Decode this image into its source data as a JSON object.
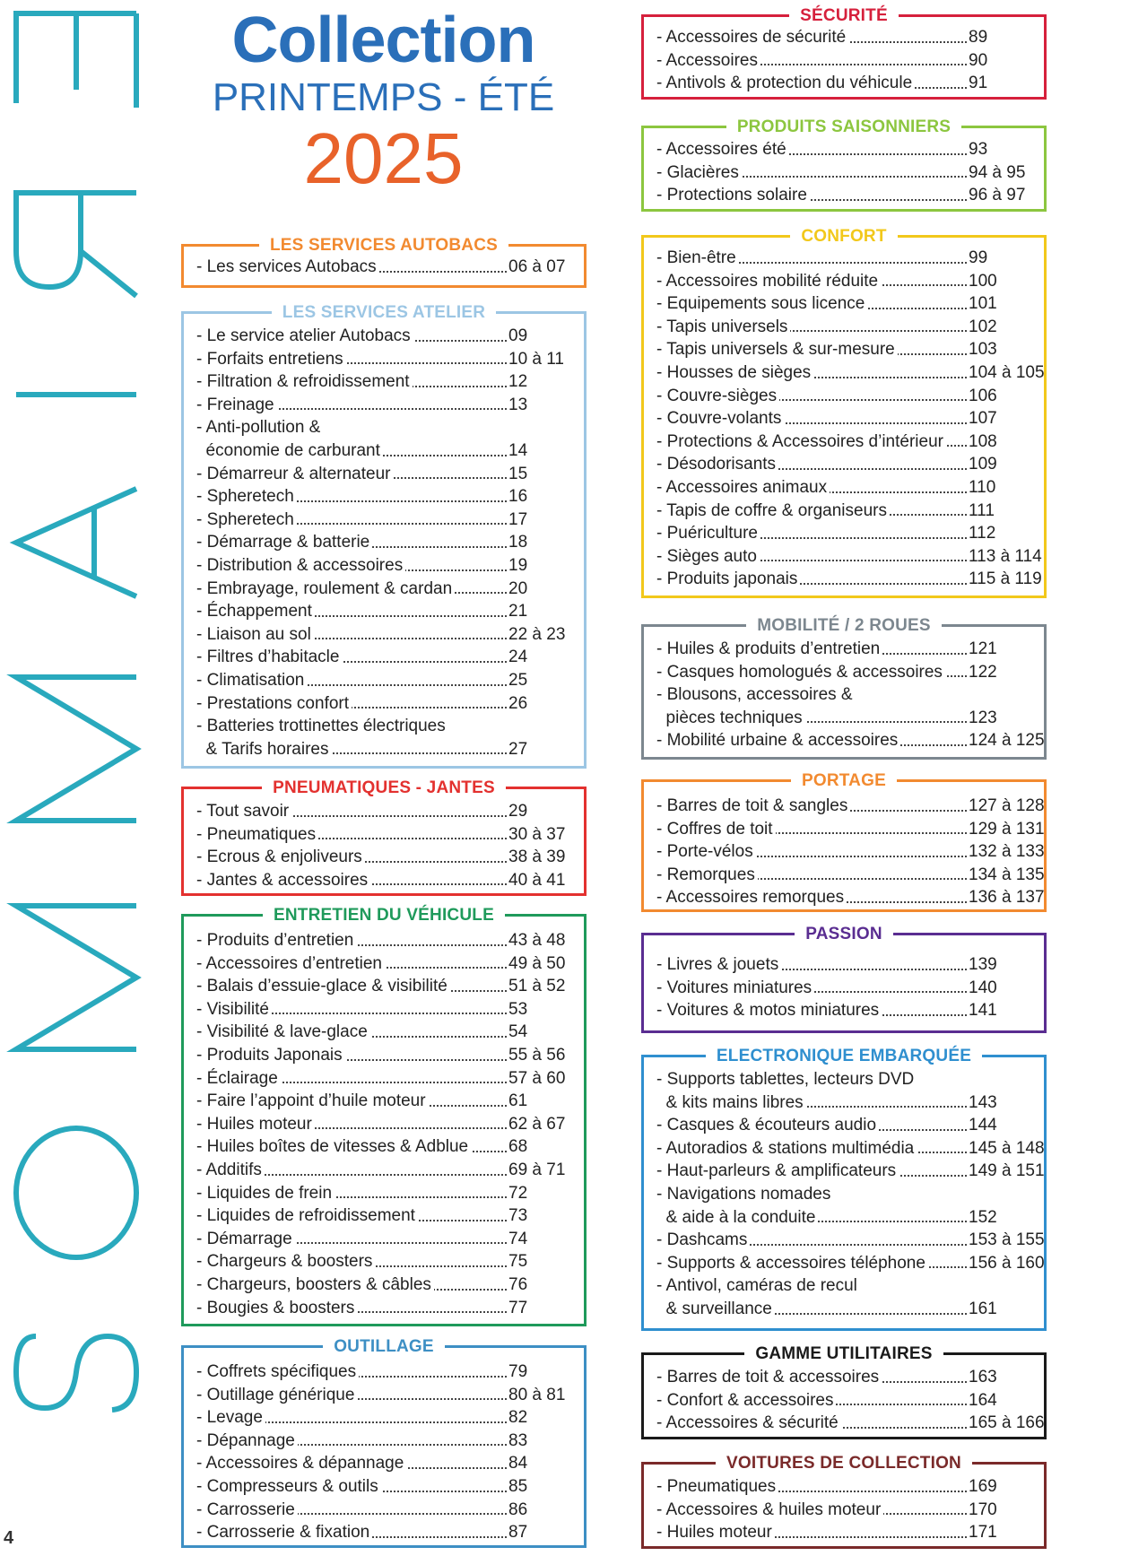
{
  "page_number": "4",
  "vertical_title": "SOMMAIRE",
  "header": {
    "line1": "Collection",
    "line2": "PRINTEMPS - ÉTÉ",
    "line3": "2025"
  },
  "sections": [
    {
      "id": "autobacs",
      "title": "LES SERVICES AUTOBACS",
      "color": "#f28a30",
      "items": [
        {
          "label": "- Les services Autobacs",
          "pages": "06 à 07"
        }
      ]
    },
    {
      "id": "atelier",
      "title": "LES SERVICES ATELIER",
      "color": "#9cc6e4",
      "items": [
        {
          "label": "- Le service atelier Autobacs",
          "pages": "09"
        },
        {
          "label": "- Forfaits entretiens",
          "pages": "10 à 11"
        },
        {
          "label": "- Filtration & refroidissement",
          "pages": "12"
        },
        {
          "label": "- Freinage",
          "pages": "13"
        },
        {
          "label": "- Anti-pollution &",
          "pages": ""
        },
        {
          "label": "  économie de carburant",
          "pages": "14"
        },
        {
          "label": "- Démarreur & alternateur",
          "pages": "15"
        },
        {
          "label": "- Spheretech",
          "pages": "16"
        },
        {
          "label": "- Spheretech",
          "pages": "17"
        },
        {
          "label": "- Démarrage & batterie",
          "pages": "18"
        },
        {
          "label": "- Distribution & accessoires",
          "pages": "19"
        },
        {
          "label": "- Embrayage, roulement & cardan",
          "pages": "20"
        },
        {
          "label": "- Échappement",
          "pages": "21"
        },
        {
          "label": "- Liaison au sol",
          "pages": "22 à 23"
        },
        {
          "label": "- Filtres d’habitacle",
          "pages": "24"
        },
        {
          "label": "- Climatisation",
          "pages": "25"
        },
        {
          "label": "- Prestations confort",
          "pages": "26"
        },
        {
          "label": "- Batteries trottinettes électriques",
          "pages": ""
        },
        {
          "label": "  & Tarifs horaires",
          "pages": "27"
        }
      ]
    },
    {
      "id": "pneus",
      "title": "PNEUMATIQUES - JANTES",
      "color": "#e3312f",
      "items": [
        {
          "label": "- Tout savoir",
          "pages": "29"
        },
        {
          "label": "- Pneumatiques",
          "pages": "30 à 37"
        },
        {
          "label": "- Ecrous & enjoliveurs",
          "pages": "38 à 39"
        },
        {
          "label": "- Jantes & accessoires",
          "pages": "40 à 41"
        }
      ]
    },
    {
      "id": "entretien",
      "title": "ENTRETIEN DU VÉHICULE",
      "color": "#1f9a5b",
      "items": [
        {
          "label": "- Produits d’entretien",
          "pages": "43 à 48"
        },
        {
          "label": "- Accessoires d’entretien",
          "pages": "49 à 50"
        },
        {
          "label": "- Balais d’essuie-glace & visibilité",
          "pages": "51 à 52"
        },
        {
          "label": "- Visibilité",
          "pages": "53"
        },
        {
          "label": "- Visibilité & lave-glace",
          "pages": "54"
        },
        {
          "label": "- Produits Japonais",
          "pages": "55 à 56"
        },
        {
          "label": "- Éclairage",
          "pages": "57 à 60"
        },
        {
          "label": "- Faire l’appoint d’huile moteur",
          "pages": "61"
        },
        {
          "label": "- Huiles moteur",
          "pages": "62 à 67"
        },
        {
          "label": "- Huiles boîtes de vitesses & Adblue",
          "pages": "68"
        },
        {
          "label": "- Additifs",
          "pages": "69 à 71"
        },
        {
          "label": "- Liquides de frein",
          "pages": "72"
        },
        {
          "label": "- Liquides de refroidissement",
          "pages": "73"
        },
        {
          "label": "- Démarrage",
          "pages": "74"
        },
        {
          "label": "- Chargeurs & boosters",
          "pages": "75"
        },
        {
          "label": "- Chargeurs, boosters & câbles",
          "pages": "76"
        },
        {
          "label": "- Bougies & boosters",
          "pages": "77"
        }
      ]
    },
    {
      "id": "outillage",
      "title": "OUTILLAGE",
      "color": "#3d8fc4",
      "items": [
        {
          "label": "- Coffrets spécifiques",
          "pages": "79"
        },
        {
          "label": "- Outillage générique",
          "pages": "80 à 81"
        },
        {
          "label": "- Levage",
          "pages": "82"
        },
        {
          "label": "- Dépannage",
          "pages": "83"
        },
        {
          "label": "- Accessoires & dépannage",
          "pages": "84"
        },
        {
          "label": "- Compresseurs & outils",
          "pages": "85"
        },
        {
          "label": "- Carrosserie",
          "pages": "86"
        },
        {
          "label": "- Carrosserie & fixation",
          "pages": "87"
        }
      ]
    },
    {
      "id": "securite",
      "title": "SÉCURITÉ",
      "color": "#d6203c",
      "items": [
        {
          "label": "- Accessoires de sécurité",
          "pages": "89"
        },
        {
          "label": "- Accessoires",
          "pages": "90"
        },
        {
          "label": "- Antivols & protection du véhicule",
          "pages": "91"
        }
      ]
    },
    {
      "id": "saisonniers",
      "title": "PRODUITS SAISONNIERS",
      "color": "#8cc63f",
      "items": [
        {
          "label": "- Accessoires été",
          "pages": "93"
        },
        {
          "label": "- Glacières",
          "pages": "94 à 95"
        },
        {
          "label": "- Protections solaire",
          "pages": "96 à 97"
        }
      ]
    },
    {
      "id": "confort",
      "title": "CONFORT",
      "color": "#f2c81b",
      "items": [
        {
          "label": "- Bien-être",
          "pages": "99"
        },
        {
          "label": "- Accessoires mobilité réduite",
          "pages": "100"
        },
        {
          "label": "- Equipements sous licence",
          "pages": "101"
        },
        {
          "label": "- Tapis universels",
          "pages": "102"
        },
        {
          "label": "- Tapis universels & sur-mesure",
          "pages": "103"
        },
        {
          "label": "- Housses de sièges",
          "pages": "104 à 105"
        },
        {
          "label": "- Couvre-sièges",
          "pages": "106"
        },
        {
          "label": "- Couvre-volants",
          "pages": "107"
        },
        {
          "label": "- Protections & Accessoires d’intérieur",
          "pages": "108"
        },
        {
          "label": "- Désodorisants",
          "pages": "109"
        },
        {
          "label": "- Accessoires animaux",
          "pages": "110"
        },
        {
          "label": "- Tapis de coffre & organiseurs",
          "pages": "111"
        },
        {
          "label": "- Puériculture",
          "pages": "112"
        },
        {
          "label": "- Sièges auto",
          "pages": "113 à 114"
        },
        {
          "label": "- Produits japonais",
          "pages": "115 à 119"
        }
      ]
    },
    {
      "id": "mobilite",
      "title": "MOBILITÉ / 2 ROUES",
      "color": "#7c878f",
      "items": [
        {
          "label": "- Huiles & produits d’entretien",
          "pages": "121"
        },
        {
          "label": "- Casques homologués & accessoires",
          "pages": "122"
        },
        {
          "label": "- Blousons, accessoires &",
          "pages": ""
        },
        {
          "label": "  pièces techniques",
          "pages": "123"
        },
        {
          "label": "- Mobilité urbaine & accessoires",
          "pages": "124 à 125"
        }
      ]
    },
    {
      "id": "portage",
      "title": "PORTAGE",
      "color": "#f28a30",
      "items": [
        {
          "label": "- Barres de toit & sangles",
          "pages": "127 à 128"
        },
        {
          "label": "- Coffres de toit",
          "pages": "129 à 131"
        },
        {
          "label": "- Porte-vélos",
          "pages": "132 à 133"
        },
        {
          "label": "- Remorques",
          "pages": "134 à 135"
        },
        {
          "label": "- Accessoires remorques",
          "pages": "136 à 137"
        }
      ]
    },
    {
      "id": "passion",
      "title": "PASSION",
      "color": "#5a2d91",
      "items": [
        {
          "label": "- Livres & jouets",
          "pages": "139"
        },
        {
          "label": "- Voitures miniatures",
          "pages": "140"
        },
        {
          "label": "- Voitures & motos miniatures",
          "pages": "141"
        }
      ]
    },
    {
      "id": "electronique",
      "title": "ELECTRONIQUE EMBARQUÉE",
      "color": "#2f8fcf",
      "items": [
        {
          "label": "- Supports tablettes, lecteurs DVD",
          "pages": ""
        },
        {
          "label": "  & kits mains libres",
          "pages": "143"
        },
        {
          "label": "- Casques & écouteurs audio",
          "pages": "144"
        },
        {
          "label": "- Autoradios & stations multimédia",
          "pages": "145 à 148"
        },
        {
          "label": "- Haut-parleurs & amplificateurs",
          "pages": "149 à 151"
        },
        {
          "label": "- Navigations nomades",
          "pages": ""
        },
        {
          "label": "  & aide à la conduite",
          "pages": "152"
        },
        {
          "label": "- Dashcams",
          "pages": "153 à 155"
        },
        {
          "label": "- Supports & accessoires téléphone",
          "pages": "156 à 160"
        },
        {
          "label": "- Antivol, caméras de recul",
          "pages": ""
        },
        {
          "label": "  & surveillance",
          "pages": "161"
        }
      ]
    },
    {
      "id": "utilitaires",
      "title": "GAMME UTILITAIRES",
      "color": "#1a1a1a",
      "items": [
        {
          "label": "- Barres de toit & accessoires",
          "pages": "163"
        },
        {
          "label": "- Confort & accessoires",
          "pages": "164"
        },
        {
          "label": "- Accessoires & sécurité",
          "pages": "165 à 166"
        }
      ]
    },
    {
      "id": "collection",
      "title": "VOITURES DE COLLECTION",
      "color": "#7a2a2a",
      "items": [
        {
          "label": "- Pneumatiques",
          "pages": "169"
        },
        {
          "label": "- Accessoires & huiles moteur",
          "pages": "170"
        },
        {
          "label": "- Huiles moteur",
          "pages": "171"
        }
      ]
    }
  ]
}
